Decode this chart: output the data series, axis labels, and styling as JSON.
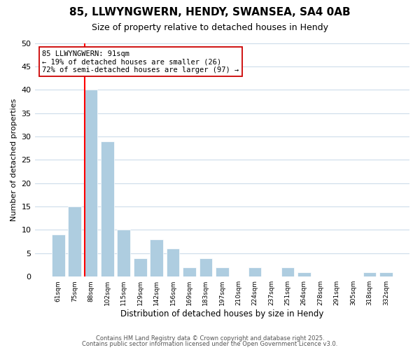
{
  "title": "85, LLWYNGWERN, HENDY, SWANSEA, SA4 0AB",
  "subtitle": "Size of property relative to detached houses in Hendy",
  "xlabel": "Distribution of detached houses by size in Hendy",
  "ylabel": "Number of detached properties",
  "bar_color": "#aecde0",
  "background_color": "#ffffff",
  "grid_color": "#c8d8e8",
  "categories": [
    "61sqm",
    "75sqm",
    "88sqm",
    "102sqm",
    "115sqm",
    "129sqm",
    "142sqm",
    "156sqm",
    "169sqm",
    "183sqm",
    "197sqm",
    "210sqm",
    "224sqm",
    "237sqm",
    "251sqm",
    "264sqm",
    "278sqm",
    "291sqm",
    "305sqm",
    "318sqm",
    "332sqm"
  ],
  "values": [
    9,
    15,
    40,
    29,
    10,
    4,
    8,
    6,
    2,
    4,
    2,
    0,
    2,
    0,
    2,
    1,
    0,
    0,
    0,
    1,
    1
  ],
  "ylim": [
    0,
    50
  ],
  "yticks": [
    0,
    5,
    10,
    15,
    20,
    25,
    30,
    35,
    40,
    45,
    50
  ],
  "annotation_title": "85 LLWYNGWERN: 91sqm",
  "annotation_line1": "← 19% of detached houses are smaller (26)",
  "annotation_line2": "72% of semi-detached houses are larger (97) →",
  "footer_line1": "Contains HM Land Registry data © Crown copyright and database right 2025.",
  "footer_line2": "Contains public sector information licensed under the Open Government Licence v3.0.",
  "red_line_bar_index": 2
}
